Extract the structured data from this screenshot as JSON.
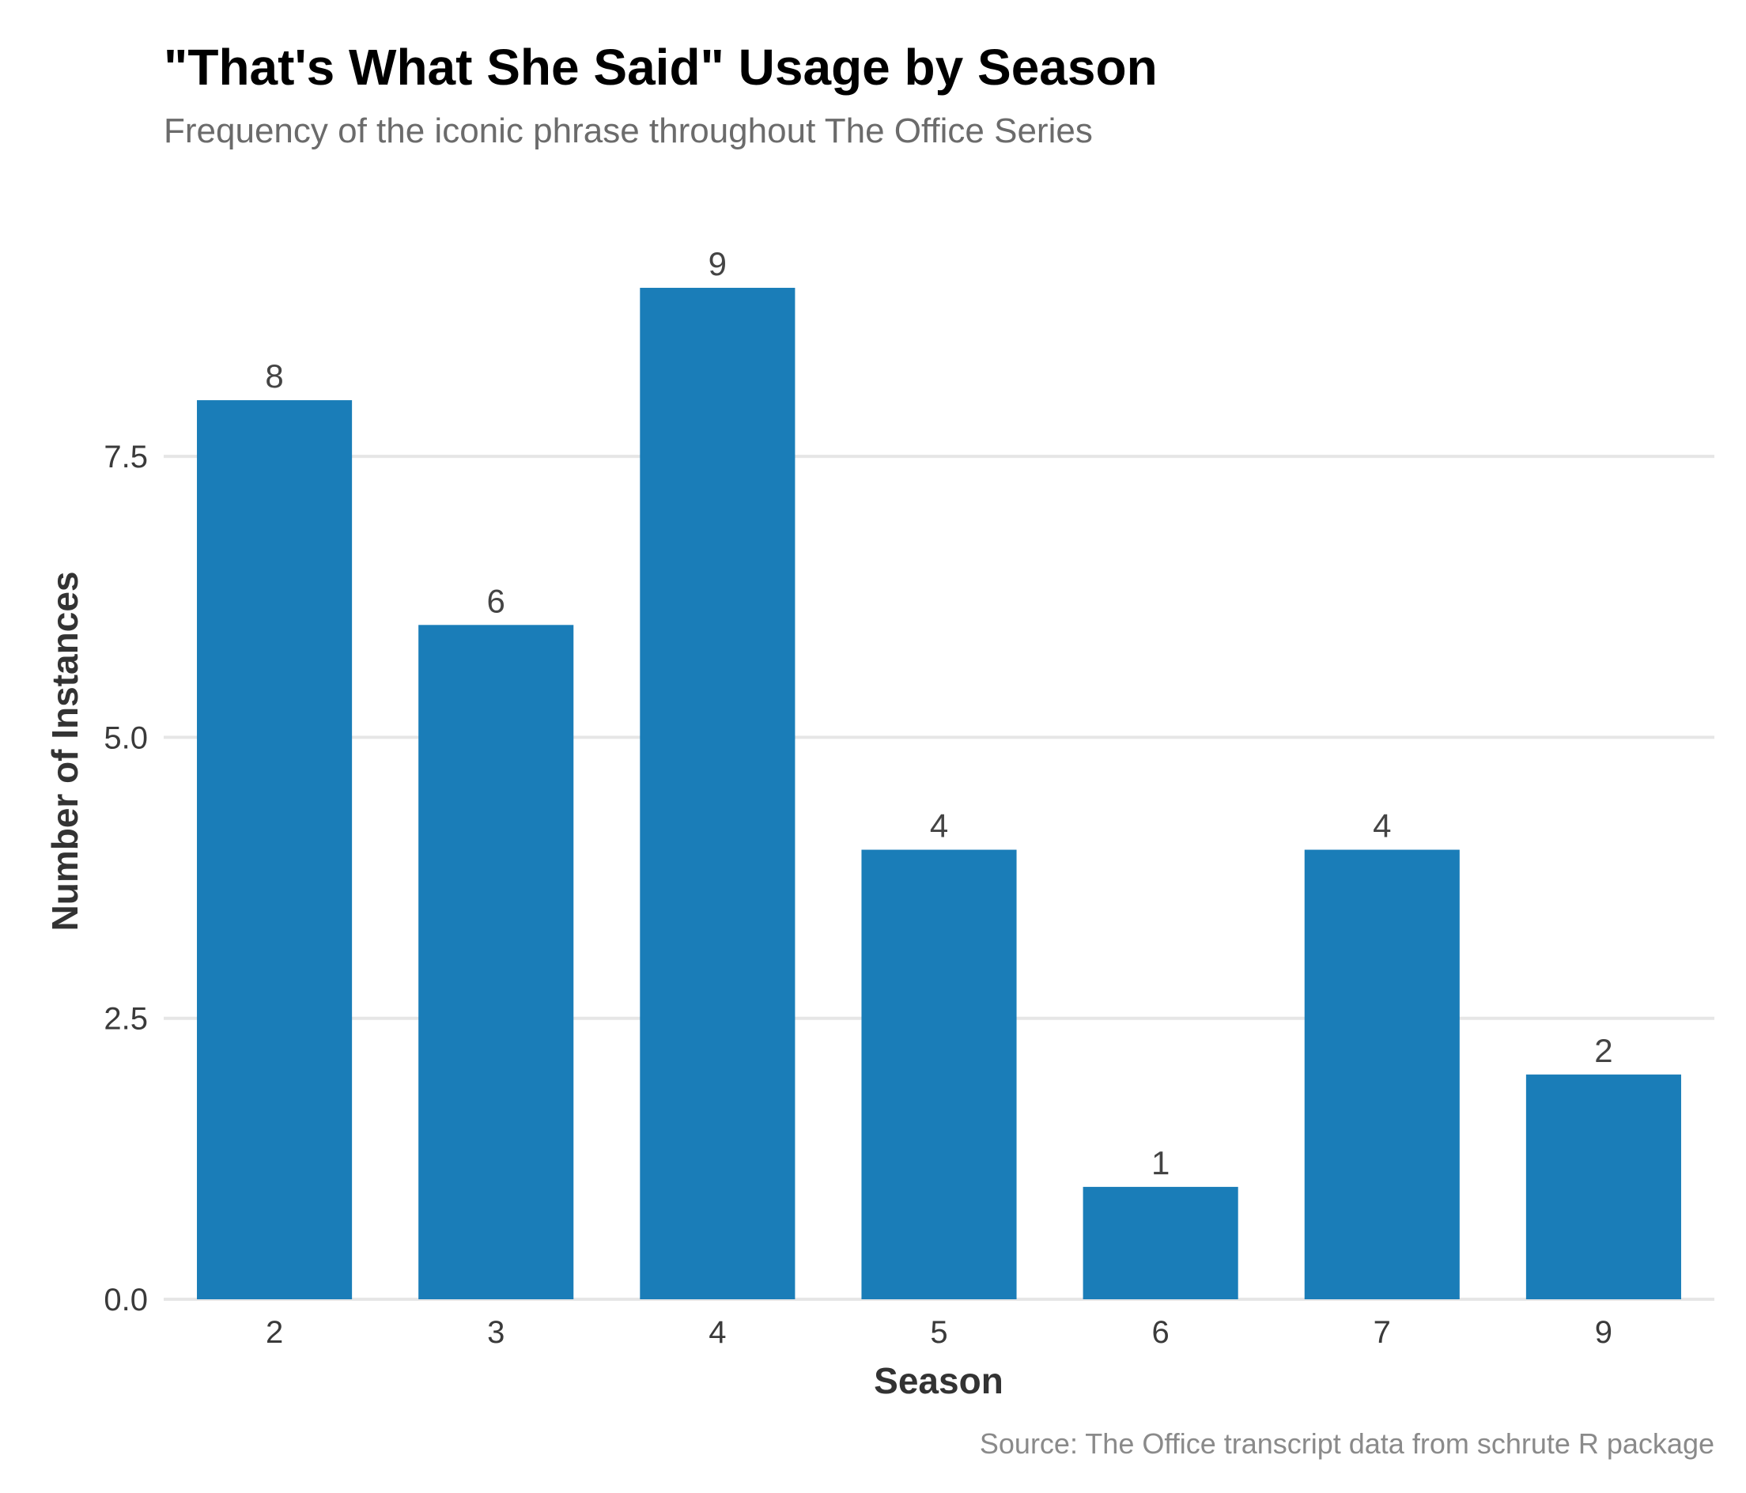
{
  "chart_data": {
    "type": "bar",
    "title": "\"That's What She Said\" Usage by Season",
    "subtitle": "Frequency of the iconic phrase throughout The Office Series",
    "caption": "Source: The Office transcript data from schrute R package",
    "xlabel": "Season",
    "ylabel": "Number of Instances",
    "categories": [
      "2",
      "3",
      "4",
      "5",
      "6",
      "7",
      "9"
    ],
    "values": [
      8,
      6,
      9,
      4,
      1,
      4,
      2
    ],
    "data_labels": [
      "8",
      "6",
      "9",
      "4",
      "1",
      "4",
      "2"
    ],
    "yticks": [
      0,
      2.5,
      5,
      7.5
    ],
    "ytick_labels": [
      "0.0",
      "2.5",
      "5.0",
      "7.5"
    ],
    "ylim": [
      0,
      9.45
    ],
    "bar_color": "#1a7db8",
    "grid": "horizontal",
    "legend": "none"
  }
}
